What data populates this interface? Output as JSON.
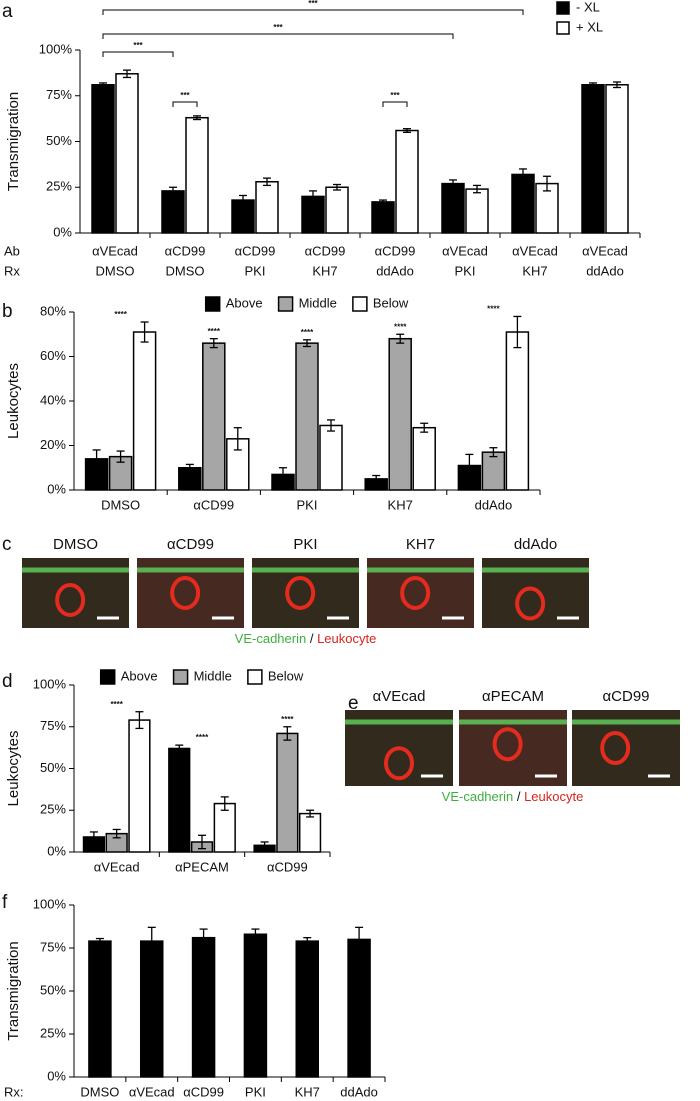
{
  "chart_data": [
    {
      "type": "bar",
      "panel_label": "a",
      "y_label": "Transmigration",
      "legend": "top-right",
      "row_labels": [
        "Ab",
        "Rx"
      ],
      "categories": [
        [
          "αVEcad",
          "DMSO"
        ],
        [
          "αCD99",
          "DMSO"
        ],
        [
          "αCD99",
          "PKI"
        ],
        [
          "αCD99",
          "KH7"
        ],
        [
          "αCD99",
          "ddAdo"
        ],
        [
          "αVEcad",
          "PKI"
        ],
        [
          "αVEcad",
          "KH7"
        ],
        [
          "αVEcad",
          "ddAdo"
        ]
      ],
      "series": [
        {
          "name": "- XL",
          "color": "#000000",
          "values": [
            81,
            23,
            18,
            20,
            17,
            27,
            32,
            81
          ],
          "errors": [
            1,
            2,
            2.5,
            3,
            1,
            2,
            3,
            1
          ]
        },
        {
          "name": "+ XL",
          "color": "#ffffff",
          "values": [
            87,
            63,
            28,
            25,
            56,
            24,
            27,
            81
          ],
          "errors": [
            2,
            1,
            2,
            1.5,
            1,
            2,
            4,
            1.5
          ]
        }
      ],
      "annotations": [
        "***",
        "***",
        "***",
        "***",
        "***"
      ],
      "ylim": [
        0,
        100
      ],
      "yticks": [
        {
          "value": 0,
          "label": "0%"
        },
        {
          "value": 25,
          "label": "25%"
        },
        {
          "value": 50,
          "label": "50%"
        },
        {
          "value": 75,
          "label": "75%"
        },
        {
          "value": 100,
          "label": "100%"
        }
      ]
    },
    {
      "type": "bar",
      "panel_label": "b",
      "y_label": "Leukocytes",
      "legend": "top",
      "categories": [
        "DMSO",
        "αCD99",
        "PKI",
        "KH7",
        "ddAdo"
      ],
      "series": [
        {
          "name": "Above",
          "color": "#000000",
          "values": [
            14,
            10,
            7,
            5,
            11
          ],
          "errors": [
            4,
            1.5,
            3,
            1.5,
            5
          ]
        },
        {
          "name": "Middle",
          "color": "#a6a6a6",
          "values": [
            15,
            66,
            66,
            68,
            17
          ],
          "errors": [
            2.5,
            2,
            1.5,
            2,
            2
          ]
        },
        {
          "name": "Below",
          "color": "#ffffff",
          "values": [
            71,
            23,
            29,
            28,
            71
          ],
          "errors": [
            4.5,
            5,
            2.5,
            2,
            7
          ]
        }
      ],
      "annotations": [
        "****",
        "****",
        "****",
        "****",
        "****"
      ],
      "ylim": [
        0,
        80
      ],
      "yticks": [
        {
          "value": 0,
          "label": "0%"
        },
        {
          "value": 20,
          "label": "20%"
        },
        {
          "value": 40,
          "label": "40%"
        },
        {
          "value": 60,
          "label": "60%"
        },
        {
          "value": 80,
          "label": "80%"
        }
      ]
    },
    {
      "type": "bar",
      "panel_label": "d",
      "y_label": "Leukocytes",
      "legend": "top",
      "categories": [
        "αVEcad",
        "αPECAM",
        "αCD99"
      ],
      "series": [
        {
          "name": "Above",
          "color": "#000000",
          "values": [
            9,
            62,
            4
          ],
          "errors": [
            3,
            2,
            2
          ]
        },
        {
          "name": "Middle",
          "color": "#a6a6a6",
          "values": [
            11,
            6,
            71
          ],
          "errors": [
            2.5,
            4,
            4
          ]
        },
        {
          "name": "Below",
          "color": "#ffffff",
          "values": [
            79,
            29,
            23
          ],
          "errors": [
            5,
            4,
            2
          ]
        }
      ],
      "annotations": [
        "****",
        "****",
        "****"
      ],
      "ylim": [
        0,
        100
      ],
      "yticks": [
        {
          "value": 0,
          "label": "0%"
        },
        {
          "value": 25,
          "label": "25%"
        },
        {
          "value": 50,
          "label": "50%"
        },
        {
          "value": 75,
          "label": "75%"
        },
        {
          "value": 100,
          "label": "100%"
        }
      ]
    },
    {
      "type": "bar",
      "panel_label": "f",
      "y_label": "Transmigration",
      "row_labels": [
        "Rx:"
      ],
      "categories": [
        "DMSO",
        "αVEcad",
        "αCD99",
        "PKI",
        "KH7",
        "ddAdo"
      ],
      "series": [
        {
          "color": "#000000",
          "values": [
            79,
            79,
            81,
            83,
            79,
            80
          ],
          "errors": [
            1.5,
            8,
            5,
            3,
            2,
            7
          ]
        }
      ],
      "ylim": [
        0,
        100
      ],
      "yticks": [
        {
          "value": 0,
          "label": "0%"
        },
        {
          "value": 25,
          "label": "25%"
        },
        {
          "value": 50,
          "label": "50%"
        },
        {
          "value": 75,
          "label": "75%"
        },
        {
          "value": 100,
          "label": "100%"
        }
      ]
    }
  ],
  "micrographs": [
    {
      "panel_label": "c",
      "titles": [
        "DMSO",
        "αCD99",
        "PKI",
        "KH7",
        "ddAdo"
      ],
      "caption": {
        "green": "VE-cadherin",
        "separator": " / ",
        "red": "Leukocyte"
      }
    },
    {
      "panel_label": "e",
      "titles": [
        "αVEcad",
        "αPECAM",
        "αCD99"
      ],
      "caption": {
        "green": "VE-cadherin",
        "separator": " / ",
        "red": "Leukocyte"
      }
    }
  ]
}
